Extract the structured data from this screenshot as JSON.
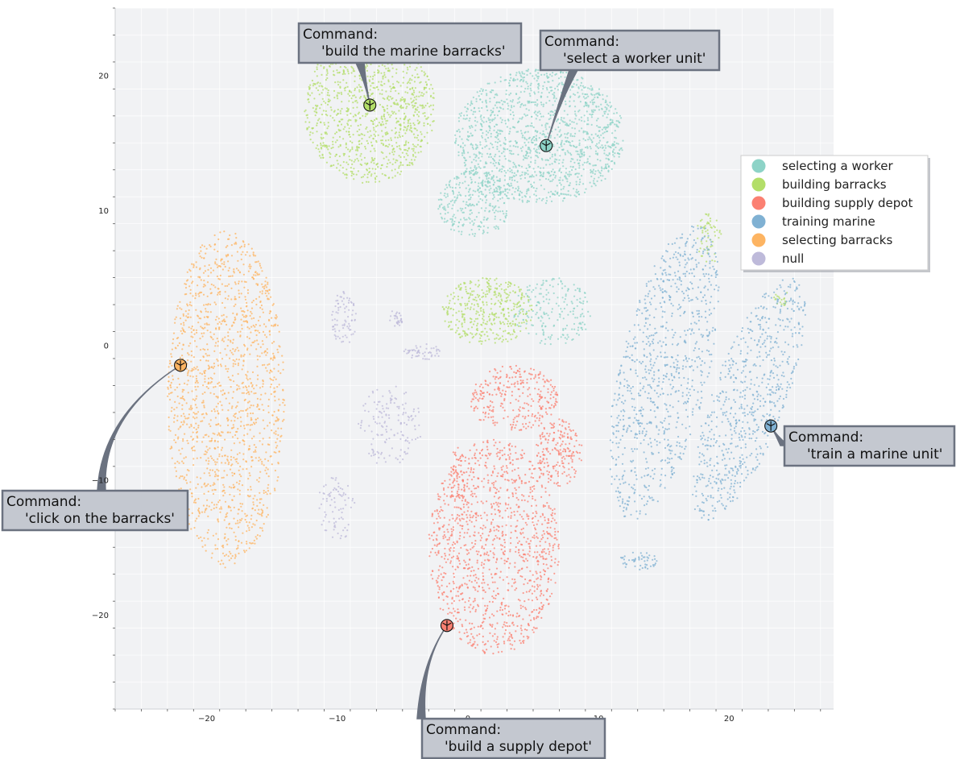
{
  "chart_data": {
    "type": "scatter",
    "title": "",
    "xlabel": "",
    "ylabel": "",
    "xlim": [
      -27,
      28
    ],
    "ylim": [
      -27,
      25
    ],
    "xticks": [
      -20,
      -10,
      0,
      10,
      20
    ],
    "yticks": [
      -20,
      -10,
      0,
      10,
      20
    ],
    "grid": true,
    "legend_position": "right",
    "series": [
      {
        "name": "selecting a worker",
        "color": "#8dd3c7",
        "clusters": [
          {
            "center": [
              5.5,
              15.5
            ],
            "spread": [
              6.5,
              5.0
            ],
            "count": 1400
          },
          {
            "center": [
              0.5,
              10.5
            ],
            "spread": [
              2.8,
              2.5
            ],
            "count": 300
          },
          {
            "center": [
              6.5,
              2.5
            ],
            "spread": [
              3.0,
              2.5
            ],
            "count": 200
          }
        ]
      },
      {
        "name": "building barracks",
        "color": "#b3de69",
        "clusters": [
          {
            "center": [
              -7.5,
              17.5
            ],
            "spread": [
              5.0,
              5.5
            ],
            "count": 1100
          },
          {
            "center": [
              1.5,
              2.5
            ],
            "spread": [
              3.5,
              2.5
            ],
            "count": 400
          },
          {
            "center": [
              18.5,
              8.0
            ],
            "spread": [
              1.0,
              2.0
            ],
            "count": 60
          },
          {
            "center": [
              24.0,
              3.5
            ],
            "spread": [
              0.6,
              0.6
            ],
            "count": 20
          }
        ]
      },
      {
        "name": "building supply depot",
        "color": "#fb8072",
        "clusters": [
          {
            "center": [
              2.0,
              -15.0
            ],
            "spread": [
              5.0,
              8.0
            ],
            "count": 1200
          },
          {
            "center": [
              3.5,
              -4.0
            ],
            "spread": [
              3.5,
              2.5
            ],
            "count": 300
          },
          {
            "center": [
              7.0,
              -8.0
            ],
            "spread": [
              1.8,
              2.5
            ],
            "count": 200
          },
          {
            "center": [
              -0.8,
              -10.0
            ],
            "spread": [
              0.6,
              2.5
            ],
            "count": 60
          }
        ]
      },
      {
        "name": "training marine",
        "color": "#80b1d3",
        "clusters": [
          {
            "center": [
              15.0,
              -2.0
            ],
            "spread": [
              3.5,
              11.0
            ],
            "count": 900,
            "tilt": 0.22
          },
          {
            "center": [
              21.5,
              -4.0
            ],
            "spread": [
              3.0,
              9.0
            ],
            "count": 700,
            "tilt": 0.35
          },
          {
            "center": [
              13.0,
              -16.0
            ],
            "spread": [
              1.5,
              0.7
            ],
            "count": 50
          }
        ]
      },
      {
        "name": "selecting barracks",
        "color": "#fdb462",
        "clusters": [
          {
            "center": [
              -18.5,
              -4.0
            ],
            "spread": [
              4.5,
              12.5
            ],
            "count": 1500
          }
        ]
      },
      {
        "name": "null",
        "color": "#bebada",
        "clusters": [
          {
            "center": [
              -9.5,
              2.0
            ],
            "spread": [
              1.0,
              2.0
            ],
            "count": 80
          },
          {
            "center": [
              -6.0,
              -6.0
            ],
            "spread": [
              2.5,
              3.0
            ],
            "count": 150
          },
          {
            "center": [
              -10.0,
              -12.0
            ],
            "spread": [
              1.5,
              2.5
            ],
            "count": 80
          },
          {
            "center": [
              -3.5,
              -0.5
            ],
            "spread": [
              1.5,
              0.6
            ],
            "count": 50
          },
          {
            "center": [
              -5.5,
              2.0
            ],
            "spread": [
              0.6,
              0.6
            ],
            "count": 30
          }
        ]
      }
    ],
    "annotations": [
      {
        "title": "Command:",
        "text": "'build the marine barracks'",
        "point": [
          -7.5,
          17.8
        ],
        "color": "#b3de69"
      },
      {
        "title": "Command:",
        "text": "'select a worker unit'",
        "point": [
          6.0,
          14.8
        ],
        "color": "#8dd3c7"
      },
      {
        "title": "Command:",
        "text": "'click on the barracks'",
        "point": [
          -22.0,
          -1.5
        ],
        "color": "#fdb462"
      },
      {
        "title": "Command:",
        "text": "'train a marine unit'",
        "point": [
          23.2,
          -6.0
        ],
        "color": "#80b1d3"
      },
      {
        "title": "Command:",
        "text": "'build a supply depot'",
        "point": [
          -1.6,
          -20.8
        ],
        "color": "#fb8072"
      }
    ]
  }
}
